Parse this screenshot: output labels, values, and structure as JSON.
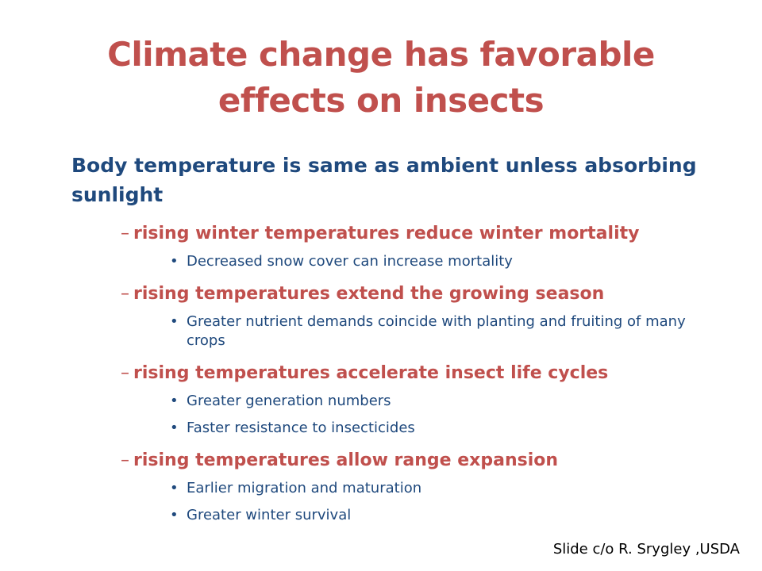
{
  "slide": {
    "title_line1": "Climate change has favorable",
    "title_line2": "effects on insects",
    "lead": "Body temperature is same as ambient unless absorbing sunlight",
    "topics": [
      {
        "heading": "rising winter temperatures reduce winter mortality",
        "bullets": [
          "Decreased snow cover can increase mortality"
        ]
      },
      {
        "heading": "rising temperatures extend the growing season",
        "bullets": [
          "Greater nutrient demands coincide with planting and fruiting of many crops"
        ]
      },
      {
        "heading": "rising temperatures accelerate insect life cycles",
        "bullets": [
          "Greater generation numbers",
          "Faster resistance to insecticides"
        ]
      },
      {
        "heading": "rising temperatures allow range expansion",
        "bullets": [
          "Earlier migration and maturation",
          "Greater winter survival"
        ]
      }
    ],
    "dash_glyph": "–",
    "bullet_glyph": "•",
    "credit": "Slide c/o R. Srygley ,USDA"
  },
  "colors": {
    "title": "#c0504d",
    "lead": "#1f497d",
    "subheading": "#c0504d",
    "bullet_text": "#1f497d",
    "credit": "#000000",
    "background": "#ffffff"
  }
}
